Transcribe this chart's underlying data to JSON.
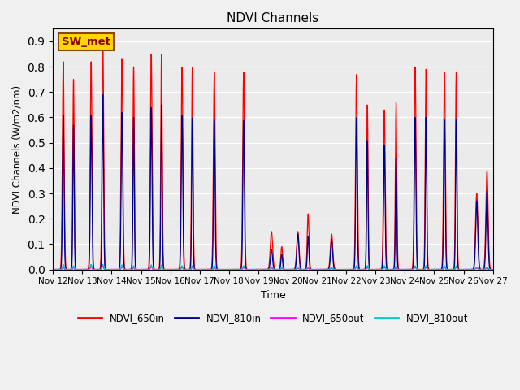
{
  "title": "NDVI Channels",
  "ylabel": "NDVI Channels (W/m2/nm)",
  "xlabel": "Time",
  "annotation": "SW_met",
  "ylim": [
    0.0,
    0.95
  ],
  "plot_bg": "#ebebeb",
  "fig_bg": "#f0f0f0",
  "legend_labels": [
    "NDVI_650in",
    "NDVI_810in",
    "NDVI_650out",
    "NDVI_810out"
  ],
  "legend_colors": [
    "#ff0000",
    "#00008b",
    "#ff00ff",
    "#00cccc"
  ],
  "xtick_labels": [
    "Nov 12",
    "Nov 13",
    "Nov 14",
    "Nov 15",
    "Nov 16",
    "Nov 17",
    "Nov 18",
    "Nov 19",
    "Nov 20",
    "Nov 21",
    "Nov 22",
    "Nov 23",
    "Nov 24",
    "Nov 25",
    "Nov 26",
    "Nov 27"
  ],
  "n_days": 15,
  "peak_data": [
    [
      0.35,
      0.82,
      0.61,
      0.012,
      0.02,
      0.03
    ],
    [
      0.7,
      0.75,
      0.57,
      0.01,
      0.015,
      0.025
    ],
    [
      1.3,
      0.82,
      0.61,
      0.013,
      0.02,
      0.03
    ],
    [
      1.7,
      0.9,
      0.69,
      0.015,
      0.02,
      0.028
    ],
    [
      2.35,
      0.83,
      0.62,
      0.012,
      0.018,
      0.03
    ],
    [
      2.75,
      0.8,
      0.6,
      0.01,
      0.015,
      0.025
    ],
    [
      3.35,
      0.85,
      0.64,
      0.013,
      0.018,
      0.03
    ],
    [
      3.7,
      0.85,
      0.65,
      0.012,
      0.018,
      0.025
    ],
    [
      4.4,
      0.8,
      0.61,
      0.01,
      0.015,
      0.03
    ],
    [
      4.75,
      0.8,
      0.6,
      0.01,
      0.015,
      0.025
    ],
    [
      5.5,
      0.78,
      0.59,
      0.01,
      0.015,
      0.03
    ],
    [
      6.5,
      0.78,
      0.59,
      0.01,
      0.015,
      0.03
    ],
    [
      7.45,
      0.15,
      0.08,
      0.006,
      0.01,
      0.04
    ],
    [
      7.8,
      0.09,
      0.06,
      0.005,
      0.008,
      0.03
    ],
    [
      8.35,
      0.15,
      0.14,
      0.005,
      0.01,
      0.04
    ],
    [
      8.7,
      0.22,
      0.13,
      0.006,
      0.01,
      0.03
    ],
    [
      9.5,
      0.14,
      0.12,
      0.005,
      0.008,
      0.04
    ],
    [
      10.35,
      0.77,
      0.6,
      0.01,
      0.015,
      0.03
    ],
    [
      10.72,
      0.65,
      0.51,
      0.01,
      0.015,
      0.025
    ],
    [
      11.3,
      0.63,
      0.49,
      0.01,
      0.015,
      0.03
    ],
    [
      11.7,
      0.66,
      0.44,
      0.01,
      0.015,
      0.025
    ],
    [
      12.35,
      0.8,
      0.6,
      0.01,
      0.015,
      0.03
    ],
    [
      12.72,
      0.79,
      0.6,
      0.01,
      0.015,
      0.025
    ],
    [
      13.35,
      0.78,
      0.59,
      0.01,
      0.015,
      0.03
    ],
    [
      13.75,
      0.78,
      0.59,
      0.01,
      0.015,
      0.025
    ],
    [
      14.45,
      0.3,
      0.27,
      0.006,
      0.01,
      0.04
    ],
    [
      14.8,
      0.39,
      0.31,
      0.006,
      0.01,
      0.038
    ]
  ]
}
